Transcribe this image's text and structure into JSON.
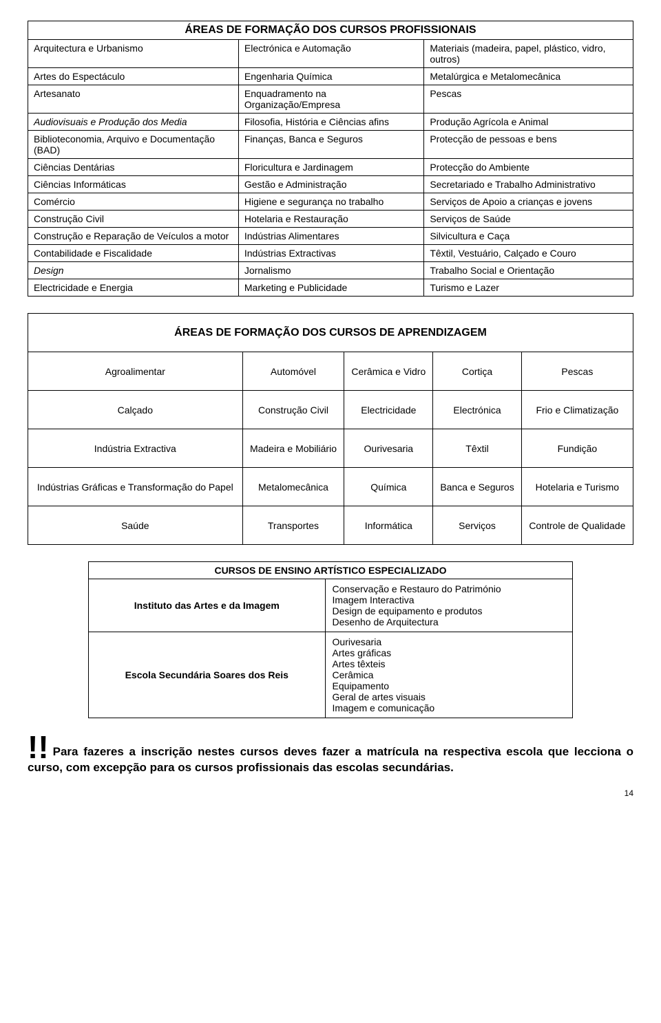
{
  "table1": {
    "title": "ÁREAS DE FORMAÇÃO DOS CURSOS PROFISSIONAIS",
    "rows": [
      [
        "Arquitectura e Urbanismo",
        "Electrónica e Automação",
        "Materiais (madeira, papel, plástico, vidro, outros)"
      ],
      [
        "Artes do Espectáculo",
        "Engenharia Química",
        "Metalúrgica e Metalomecânica"
      ],
      [
        "Artesanato",
        "Enquadramento na Organização/Empresa",
        "Pescas"
      ],
      [
        "Audiovisuais e Produção dos Media",
        "Filosofia, História e Ciências afins",
        "Produção Agrícola e Animal"
      ],
      [
        "Biblioteconomia, Arquivo e Documentação (BAD)",
        "Finanças, Banca e Seguros",
        "Protecção de pessoas e bens"
      ],
      [
        "Ciências Dentárias",
        "Floricultura e Jardinagem",
        "Protecção do Ambiente"
      ],
      [
        "Ciências Informáticas",
        "Gestão e Administração",
        "Secretariado e Trabalho Administrativo"
      ],
      [
        "Comércio",
        "Higiene e segurança no trabalho",
        "Serviços de Apoio a crianças e jovens"
      ],
      [
        "Construção Civil",
        "Hotelaria e Restauração",
        "Serviços de Saúde"
      ],
      [
        "Construção e Reparação de Veículos a motor",
        "Indústrias Alimentares",
        "Silvicultura e Caça"
      ],
      [
        "Contabilidade e Fiscalidade",
        "Indústrias Extractivas",
        "Têxtil, Vestuário, Calçado e Couro"
      ],
      [
        "Design",
        "Jornalismo",
        "Trabalho Social e Orientação"
      ],
      [
        "Electricidade e Energia",
        "Marketing e Publicidade",
        "Turismo e Lazer"
      ]
    ],
    "italic_cells": [
      [
        3,
        0
      ],
      [
        11,
        0
      ]
    ]
  },
  "table2": {
    "title": "ÁREAS DE FORMAÇÃO DOS CURSOS DE APRENDIZAGEM",
    "rows": [
      [
        "Agroalimentar",
        "Automóvel",
        "Cerâmica e Vidro",
        "Cortiça",
        "Pescas"
      ],
      [
        "Calçado",
        "Construção Civil",
        "Electricidade",
        "Electrónica",
        "Frio e Climatização"
      ],
      [
        "Indústria Extractiva",
        "Madeira e Mobiliário",
        "Ourivesaria",
        "Têxtil",
        "Fundição"
      ],
      [
        "Indústrias Gráficas e Transformação do Papel",
        "Metalomecânica",
        "Química",
        "Banca e Seguros",
        "Hotelaria e Turismo"
      ],
      [
        "Saúde",
        "Transportes",
        "Informática",
        "Serviços",
        "Controle de Qualidade"
      ]
    ]
  },
  "table3": {
    "title": "CURSOS DE ENSINO ARTÍSTICO ESPECIALIZADO",
    "groups": [
      {
        "label": "Instituto das Artes e da Imagem",
        "items": [
          "Conservação e Restauro do Património",
          "Imagem Interactiva",
          "Design de equipamento e produtos",
          "Desenho de Arquitectura"
        ]
      },
      {
        "label": "Escola Secundária Soares dos Reis",
        "items": [
          "Ourivesaria",
          "Artes gráficas",
          "Artes têxteis",
          "Cerâmica",
          "Equipamento",
          "Geral de artes visuais",
          "Imagem e comunicação"
        ]
      }
    ]
  },
  "paragraph": {
    "excl": "!!",
    "text": "Para fazeres a inscrição nestes cursos deves fazer a matrícula na respectiva escola que lecciona o curso, com excepção para os cursos profissionais das escolas secundárias."
  },
  "page_number": "14"
}
